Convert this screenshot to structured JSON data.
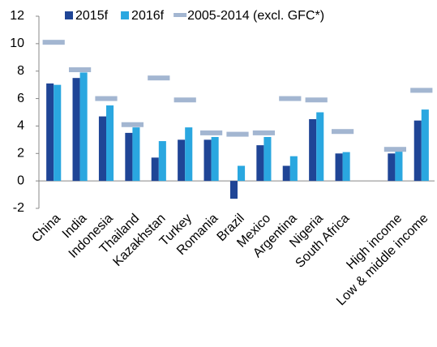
{
  "chart_data": {
    "type": "bar",
    "categories": [
      "China",
      "India",
      "Indonesia",
      "Thailand",
      "Kazakhstan",
      "Turkey",
      "Romania",
      "Brazil",
      "Mexico",
      "Argentina",
      "Nigeria",
      "South Africa",
      null,
      "High income",
      "Low & middle income"
    ],
    "series": [
      {
        "name": "2015f",
        "color": "#1f4596",
        "style": "bar",
        "values": [
          7.1,
          7.5,
          4.7,
          3.5,
          1.7,
          3.0,
          3.0,
          -1.3,
          2.6,
          1.1,
          4.5,
          2.0,
          null,
          2.0,
          4.4
        ]
      },
      {
        "name": "2016f",
        "color": "#2aa7e0",
        "style": "bar",
        "values": [
          7.0,
          7.9,
          5.5,
          3.9,
          2.9,
          3.9,
          3.2,
          1.1,
          3.2,
          1.8,
          5.0,
          2.1,
          null,
          2.2,
          5.2
        ]
      },
      {
        "name": "2005-2014 (excl. GFC*)",
        "color": "#a3b6d1",
        "style": "dash",
        "values": [
          10.1,
          8.1,
          6.0,
          4.1,
          7.5,
          5.9,
          3.5,
          3.4,
          3.5,
          6.0,
          5.9,
          3.6,
          null,
          2.3,
          6.6
        ]
      }
    ],
    "ylim": [
      -2,
      12
    ],
    "yticks": [
      -2,
      0,
      2,
      4,
      6,
      8,
      10,
      12
    ],
    "grid": false,
    "legend": "top"
  }
}
